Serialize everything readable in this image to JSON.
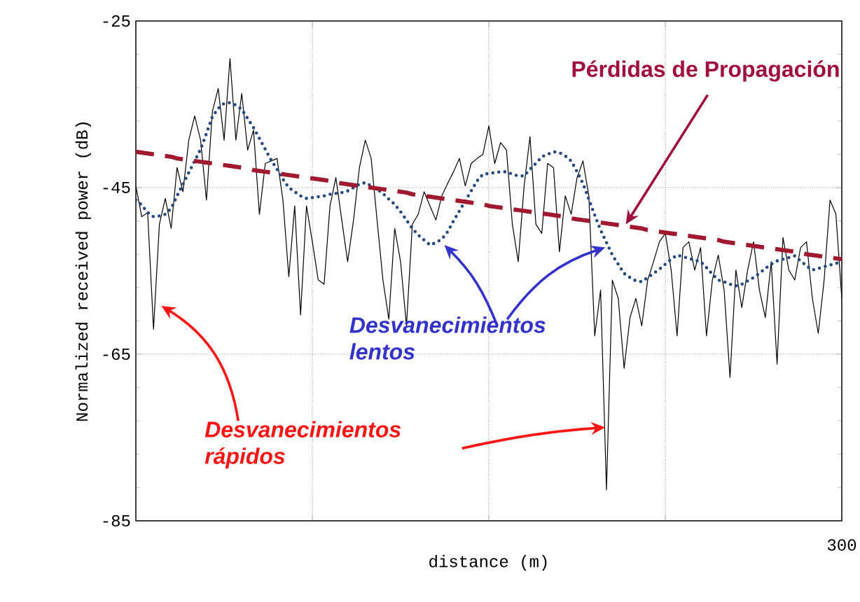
{
  "chart_data": {
    "type": "line",
    "xlabel": "distance (m)",
    "ylabel": "Normalized received power (dB)",
    "categories": [
      null,
      null,
      null,
      null,
      null,
      null,
      null,
      null,
      null,
      null,
      null,
      null,
      null,
      null,
      null,
      null,
      null,
      null,
      null,
      null,
      null,
      null,
      null,
      null,
      null,
      null,
      null,
      null,
      null,
      null,
      null,
      null,
      null,
      null,
      null,
      null,
      null,
      null,
      null,
      null,
      null,
      null,
      null,
      null,
      null,
      null,
      null,
      null,
      null,
      null,
      null,
      null,
      null,
      null,
      null,
      null,
      null,
      null,
      null,
      null,
      null,
      null,
      null,
      null,
      null,
      null,
      null,
      null,
      null,
      null,
      null,
      null,
      null,
      null,
      null,
      null,
      null,
      null,
      null,
      null,
      null,
      null,
      null,
      null,
      null,
      null,
      null,
      null,
      null,
      null,
      null,
      null,
      null,
      null,
      null,
      null,
      null,
      null,
      null,
      null,
      null,
      null,
      null,
      null,
      null,
      null,
      null,
      null,
      null,
      null,
      null,
      null,
      null,
      null,
      null,
      null,
      null,
      null,
      null,
      null,
      null
    ],
    "ylim": [
      -85,
      -25
    ],
    "yticks": [
      {
        "value": -25,
        "label": "-25"
      },
      {
        "value": -45,
        "label": "-45"
      },
      {
        "value": -65,
        "label": "-65"
      },
      {
        "value": -85,
        "label": "-85"
      }
    ],
    "grid": true,
    "marker": "none",
    "series": [
      {
        "color": "#000000",
        "line_style": "solid",
        "values": [
          -44.8,
          -48.5,
          -48.0,
          -62.0,
          -49.4,
          -46.3,
          -49.9,
          -42.6,
          -45.5,
          -39.3,
          -36.4,
          -39.3,
          -46.5,
          -35.9,
          -33.1,
          -39.3,
          -29.5,
          -39.3,
          -33.7,
          -40.5,
          -38.1,
          -48.2,
          -42.1,
          -41.8,
          -41.5,
          -46.5,
          -55.7,
          -47.2,
          -60.3,
          -47.2,
          -51.5,
          -56.1,
          -56.6,
          -47.2,
          -43.8,
          -48.9,
          -53.9,
          -48.9,
          -42.6,
          -39.3,
          -41.5,
          -48.9,
          -56.1,
          -60.8,
          -49.9,
          -53.9,
          -61.6,
          -49.4,
          -48.2,
          -45.5,
          -47.2,
          -48.9,
          -46.0,
          -44.5,
          -43.1,
          -41.5,
          -44.8,
          -42.1,
          -41.5,
          -41.0,
          -37.6,
          -42.1,
          -39.6,
          -40.5,
          -49.4,
          -53.9,
          -44.8,
          -38.9,
          -49.4,
          -50.5,
          -42.1,
          -42.6,
          -52.7,
          -46.0,
          -48.2,
          -43.8,
          -41.8,
          -46.0,
          -62.8,
          -57.3,
          -81.3,
          -56.1,
          -58.3,
          -66.7,
          -60.6,
          -58.3,
          -61.6,
          -56.1,
          -53.9,
          -51.5,
          -50.5,
          -54.9,
          -62.8,
          -52.2,
          -51.5,
          -54.9,
          -52.2,
          -62.8,
          -56.1,
          -53.1,
          -57.3,
          -67.8,
          -54.9,
          -59.4,
          -54.9,
          -51.5,
          -57.3,
          -60.6,
          -53.9,
          -66.2,
          -51.0,
          -54.9,
          -56.1,
          -52.2,
          -51.5,
          -58.3,
          -62.5,
          -56.1,
          -46.5,
          -48.2,
          -58.3
        ]
      },
      {
        "color": "#24497f",
        "line_style": "dotted",
        "values": [
          -46.5,
          -47.1,
          -48.0,
          -48.5,
          -48.4,
          -48.2,
          -47.5,
          -46.0,
          -44.6,
          -43.2,
          -41.8,
          -40.4,
          -38.5,
          -36.5,
          -35.5,
          -34.9,
          -34.8,
          -35.1,
          -35.6,
          -36.7,
          -37.8,
          -39.1,
          -40.4,
          -41.7,
          -42.8,
          -44.0,
          -45.0,
          -45.5,
          -46.0,
          -46.3,
          -46.2,
          -46.1,
          -46.0,
          -45.8,
          -45.7,
          -45.6,
          -45.4,
          -45.0,
          -44.6,
          -44.4,
          -44.8,
          -45.2,
          -45.7,
          -46.4,
          -47.0,
          -47.9,
          -48.9,
          -49.9,
          -50.7,
          -51.3,
          -51.9,
          -51.6,
          -51.2,
          -50.3,
          -49.0,
          -47.8,
          -46.6,
          -45.4,
          -44.2,
          -43.4,
          -43.3,
          -43.2,
          -43.1,
          -43.1,
          -43.4,
          -43.6,
          -43.6,
          -42.8,
          -42.1,
          -41.3,
          -41.0,
          -40.7,
          -40.8,
          -41.2,
          -41.8,
          -43.1,
          -44.5,
          -46.4,
          -48.3,
          -50.1,
          -51.6,
          -53.1,
          -54.2,
          -55.3,
          -55.8,
          -56.2,
          -56.3,
          -55.8,
          -55.3,
          -54.8,
          -54.2,
          -53.6,
          -53.1,
          -53.3,
          -53.5,
          -53.7,
          -53.9,
          -54.6,
          -55.4,
          -56.1,
          -56.3,
          -56.6,
          -56.8,
          -56.6,
          -56.2,
          -55.8,
          -55.3,
          -54.7,
          -54.2,
          -53.8,
          -53.6,
          -53.4,
          -53.2,
          -53.8,
          -54.4,
          -54.9,
          -54.7,
          -54.5,
          -54.3,
          -54.1,
          -53.9
        ]
      },
      {
        "color": "#a0192e",
        "line_style": "dashed",
        "values": [
          -40.7,
          -40.8,
          -40.9,
          -41.0,
          -41.1,
          -41.2,
          -41.3,
          -41.5,
          -41.6,
          -41.7,
          -41.8,
          -41.9,
          -42.0,
          -42.1,
          -42.2,
          -42.3,
          -42.4,
          -42.5,
          -42.6,
          -42.7,
          -42.9,
          -43.0,
          -43.1,
          -43.2,
          -43.3,
          -43.4,
          -43.5,
          -43.6,
          -43.7,
          -43.8,
          -43.9,
          -44.0,
          -44.1,
          -44.2,
          -44.4,
          -44.5,
          -44.6,
          -44.7,
          -44.8,
          -44.9,
          -45.0,
          -45.1,
          -45.2,
          -45.3,
          -45.4,
          -45.5,
          -45.6,
          -45.8,
          -45.9,
          -46.0,
          -46.1,
          -46.2,
          -46.3,
          -46.4,
          -46.5,
          -46.6,
          -46.7,
          -46.8,
          -46.9,
          -47.0,
          -47.2,
          -47.3,
          -47.4,
          -47.5,
          -47.6,
          -47.7,
          -47.8,
          -47.9,
          -48.0,
          -48.1,
          -48.2,
          -48.3,
          -48.4,
          -48.5,
          -48.7,
          -48.8,
          -48.9,
          -49.0,
          -49.1,
          -49.2,
          -49.3,
          -49.4,
          -49.5,
          -49.6,
          -49.7,
          -49.8,
          -49.9,
          -50.1,
          -50.2,
          -50.3,
          -50.4,
          -50.5,
          -50.6,
          -50.7,
          -50.8,
          -50.9,
          -51.0,
          -51.1,
          -51.2,
          -51.3,
          -51.5,
          -51.6,
          -51.7,
          -51.8,
          -51.9,
          -52.0,
          -52.1,
          -52.2,
          -52.3,
          -52.4,
          -52.5,
          -52.6,
          -52.7,
          -52.8,
          -53.0,
          -53.1,
          -53.2,
          -53.3,
          -53.4,
          -53.5,
          -53.6
        ]
      }
    ],
    "annotations": [
      "Pérdidas de Propagación",
      "Desvanecimientos lentos",
      "Desvanecimientos rápidos",
      "300"
    ]
  }
}
